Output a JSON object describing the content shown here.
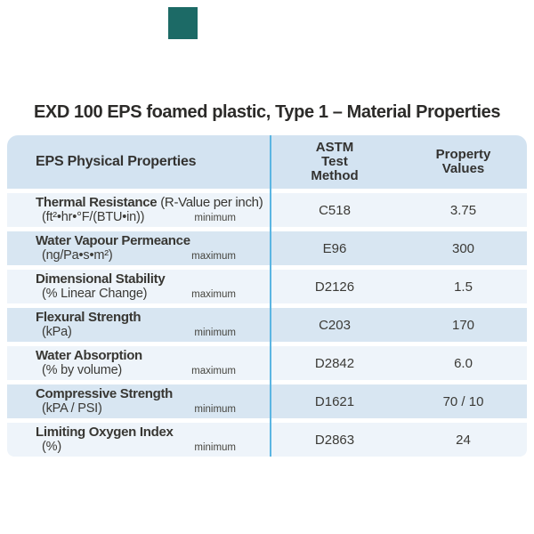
{
  "title": "EXD 100 EPS foamed plastic, Type 1 – Material Properties",
  "accent_square": {
    "color": "#1c6a66"
  },
  "table": {
    "header": {
      "properties_label": "EPS Physical Properties",
      "method_lines": [
        "ASTM",
        "Test",
        "Method"
      ],
      "values_lines": [
        "Property",
        "Values"
      ]
    },
    "rows": [
      {
        "name": "Thermal Resistance",
        "name_suffix": " (R-Value per inch)",
        "unit": "(ft²•hr•°F/(BTU•in))",
        "qualifier": "minimum",
        "method": "C518",
        "value": "3.75"
      },
      {
        "name": "Water Vapour Permeance",
        "name_suffix": "",
        "unit": "(ng/Pa•s•m²)",
        "qualifier": "maximum",
        "method": "E96",
        "value": "300"
      },
      {
        "name": "Dimensional Stability",
        "name_suffix": "",
        "unit": "(% Linear Change)",
        "qualifier": "maximum",
        "method": "D2126",
        "value": "1.5"
      },
      {
        "name": "Flexural Strength",
        "name_suffix": "",
        "unit": "(kPa)",
        "qualifier": "minimum",
        "method": "C203",
        "value": "170"
      },
      {
        "name": "Water Absorption",
        "name_suffix": "",
        "unit": "(% by volume)",
        "qualifier": "maximum",
        "method": "D2842",
        "value": "6.0"
      },
      {
        "name": "Compressive Strength",
        "name_suffix": "",
        "unit": "(kPA / PSI)",
        "qualifier": "minimum",
        "method": "D1621",
        "value": "70 / 10"
      },
      {
        "name": "Limiting Oxygen Index",
        "name_suffix": "",
        "unit": "(%)",
        "qualifier": "minimum",
        "method": "D2863",
        "value": "24"
      }
    ]
  },
  "colors": {
    "accent_square": "#1c6a66",
    "header_bg": "#d3e3f1",
    "row_light": "#eef4fa",
    "row_dark": "#d8e6f2",
    "divider": "#5bb5e2",
    "text": "#3b3a36"
  }
}
